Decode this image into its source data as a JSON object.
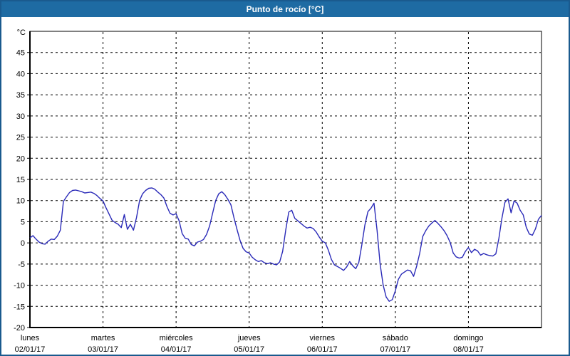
{
  "window": {
    "title": "Punto de rocío [°C]",
    "titlebar_color": "#1e6ba3",
    "border_color": "#1a5a8e"
  },
  "chart_data": {
    "type": "line",
    "title": "Punto de rocío [°C]",
    "ylabel": "°C",
    "ylim": [
      -20,
      50
    ],
    "yticks": [
      45,
      40,
      35,
      30,
      25,
      20,
      15,
      10,
      5,
      0,
      -5,
      -10,
      -15,
      -20
    ],
    "grid": "dashed",
    "legend": "none",
    "x_range_hours": [
      0,
      168
    ],
    "days": [
      {
        "name": "lunes",
        "date": "02/01/17"
      },
      {
        "name": "martes",
        "date": "03/01/17"
      },
      {
        "name": "miércoles",
        "date": "04/01/17"
      },
      {
        "name": "jueves",
        "date": "05/01/17"
      },
      {
        "name": "viernes",
        "date": "06/01/17"
      },
      {
        "name": "sábado",
        "date": "07/01/17"
      },
      {
        "name": "domingo",
        "date": "08/01/17"
      }
    ],
    "series": [
      {
        "name": "Punto de rocío",
        "color": "#2a2ab8",
        "x_step_hours": 1,
        "values": [
          1.2,
          1.7,
          0.9,
          0.2,
          -0.2,
          -0.3,
          0.4,
          0.9,
          0.8,
          1.6,
          3.0,
          9.8,
          10.9,
          11.9,
          12.4,
          12.5,
          12.3,
          12.1,
          11.8,
          11.9,
          12.0,
          11.7,
          11.2,
          10.5,
          9.9,
          8.3,
          6.8,
          5.3,
          4.8,
          4.4,
          3.6,
          6.7,
          3.2,
          4.4,
          3.0,
          6.0,
          10.0,
          11.6,
          12.4,
          12.9,
          13.0,
          12.7,
          12.0,
          11.4,
          10.6,
          8.6,
          7.0,
          6.6,
          6.9,
          5.2,
          2.2,
          1.1,
          0.9,
          -0.4,
          -0.7,
          0.2,
          0.4,
          0.8,
          2.0,
          4.0,
          7.0,
          10.0,
          11.6,
          12.1,
          11.4,
          10.3,
          9.0,
          6.0,
          3.2,
          0.6,
          -1.3,
          -2.1,
          -2.4,
          -3.4,
          -4.0,
          -4.4,
          -4.2,
          -4.7,
          -4.9,
          -4.7,
          -5.0,
          -5.2,
          -4.5,
          -2.0,
          3.0,
          7.3,
          7.7,
          5.8,
          5.2,
          4.6,
          4.0,
          3.5,
          3.7,
          3.4,
          2.6,
          1.4,
          0.4,
          0.0,
          -1.7,
          -3.9,
          -5.2,
          -5.6,
          -6.0,
          -6.5,
          -5.7,
          -4.4,
          -5.4,
          -6.1,
          -4.6,
          -0.5,
          4.2,
          7.4,
          8.2,
          9.4,
          3.0,
          -5.0,
          -10.0,
          -12.8,
          -13.8,
          -13.4,
          -11.3,
          -8.6,
          -7.4,
          -6.9,
          -6.4,
          -6.6,
          -7.9,
          -5.5,
          -2.5,
          1.5,
          2.9,
          4.0,
          4.7,
          5.3,
          4.6,
          3.8,
          2.9,
          1.7,
          0.1,
          -2.4,
          -3.3,
          -3.6,
          -3.4,
          -2.0,
          -1.1,
          -2.3,
          -1.5,
          -1.9,
          -2.9,
          -2.5,
          -2.8,
          -3.0,
          -3.1,
          -2.6,
          1.1,
          5.8,
          9.6,
          10.4,
          7.1,
          9.9,
          9.4,
          7.7,
          6.6,
          3.7,
          2.1,
          1.8,
          3.3,
          5.6,
          6.5
        ]
      }
    ]
  }
}
